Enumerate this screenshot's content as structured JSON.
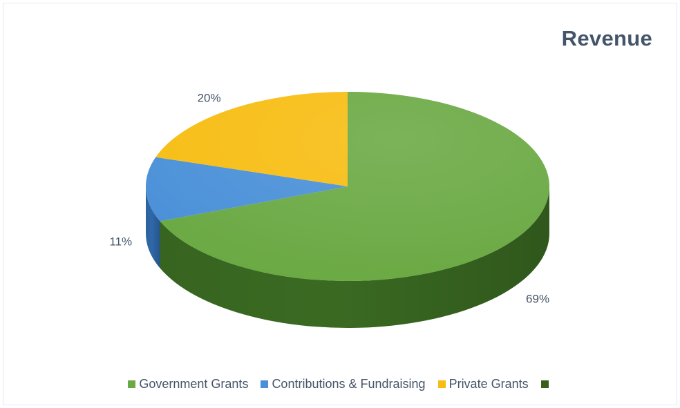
{
  "chart_data": {
    "type": "pie",
    "title": "Revenue",
    "three_d": true,
    "start_angle_deg": 0,
    "direction": "clockwise",
    "slices": [
      {
        "name": "Government Grants",
        "value": 69,
        "label": "69%",
        "color": "#6aa943",
        "side_color": "#3a6a22",
        "show_swatch": true
      },
      {
        "name": "Contributions & Fundraising",
        "value": 11,
        "label": "11%",
        "color": "#4a90d8",
        "side_color": "#2f67a8",
        "show_swatch": true
      },
      {
        "name": "Private Grants",
        "value": 20,
        "label": "20%",
        "color": "#f7bd12",
        "side_color": "#c48d08",
        "show_swatch": true
      },
      {
        "name": "",
        "value": 0,
        "label": "",
        "color": "#375f1b",
        "side_color": "#375f1b",
        "show_swatch": true
      }
    ],
    "legend_position": "bottom",
    "label_color": "#44546a"
  }
}
